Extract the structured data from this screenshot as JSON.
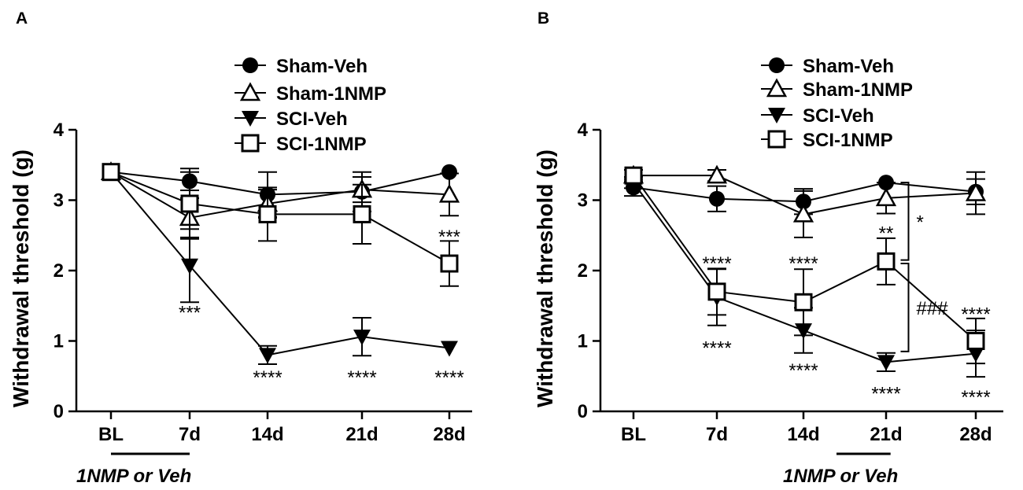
{
  "chart_data": [
    {
      "panel": "A",
      "type": "line",
      "ylabel": "Withdrawal threshold (g)",
      "ylim": [
        0,
        4
      ],
      "yticks": [
        "0",
        "1",
        "2",
        "3",
        "4"
      ],
      "categories": [
        "BL",
        "7d",
        "14d",
        "21d",
        "28d"
      ],
      "treatment_label": "1NMP or Veh",
      "treatment_span": [
        0,
        1
      ],
      "series": [
        {
          "name": "Sham-Veh",
          "marker": "circle",
          "values": [
            3.4,
            3.27,
            3.08,
            3.12,
            3.4
          ],
          "err": [
            0,
            0.13,
            0.32,
            0.28,
            0
          ]
        },
        {
          "name": "Sham-1NMP",
          "marker": "triangle-up",
          "values": [
            3.4,
            2.75,
            2.95,
            3.15,
            3.08
          ],
          "err": [
            0,
            0.28,
            0.2,
            0.18,
            0.3
          ]
        },
        {
          "name": "SCI-Veh",
          "marker": "triangle-down",
          "values": [
            3.4,
            2.07,
            0.8,
            1.06,
            0.9
          ],
          "err": [
            0,
            0.52,
            0.13,
            0.27,
            0
          ]
        },
        {
          "name": "SCI-1NMP",
          "marker": "square",
          "values": [
            3.4,
            2.95,
            2.8,
            2.8,
            2.1
          ],
          "err": [
            0,
            0.5,
            0.38,
            0.42,
            0.32
          ]
        }
      ],
      "annotations": [
        {
          "text": "***",
          "x": 1,
          "y": 1.4
        },
        {
          "text": "****",
          "x": 2,
          "y": 0.48
        },
        {
          "text": "****",
          "x": 3,
          "y": 0.48
        },
        {
          "text": "***",
          "x": 4,
          "y": 2.48
        },
        {
          "text": "****",
          "x": 4,
          "y": 0.48
        }
      ]
    },
    {
      "panel": "B",
      "type": "line",
      "ylabel": "Withdrawal threshold (g)",
      "ylim": [
        0,
        4
      ],
      "yticks": [
        "0",
        "1",
        "2",
        "3",
        "4"
      ],
      "categories": [
        "BL",
        "7d",
        "14d",
        "21d",
        "28d"
      ],
      "treatment_label": "1NMP or Veh",
      "treatment_span": [
        2.4,
        3.05
      ],
      "series": [
        {
          "name": "Sham-Veh",
          "marker": "circle",
          "values": [
            3.18,
            3.02,
            2.98,
            3.25,
            3.12
          ],
          "err": [
            0.12,
            0.18,
            0.18,
            0,
            0.18
          ]
        },
        {
          "name": "Sham-1NMP",
          "marker": "triangle-up",
          "values": [
            3.35,
            3.35,
            2.8,
            3.03,
            3.1
          ],
          "err": [
            0.08,
            0.08,
            0.33,
            0.22,
            0.3
          ]
        },
        {
          "name": "SCI-Veh",
          "marker": "triangle-down",
          "values": [
            3.25,
            1.62,
            1.15,
            0.7,
            0.82
          ],
          "err": [
            0.08,
            0.4,
            0.32,
            0.13,
            0.33
          ]
        },
        {
          "name": "SCI-1NMP",
          "marker": "square",
          "values": [
            3.35,
            1.7,
            1.55,
            2.13,
            1.0
          ],
          "err": [
            0.08,
            0.33,
            0.47,
            0.33,
            0.32
          ]
        }
      ],
      "annotations": [
        {
          "text": "****",
          "x": 1,
          "y": 2.1
        },
        {
          "text": "****",
          "x": 1,
          "y": 0.9
        },
        {
          "text": "****",
          "x": 2,
          "y": 2.1
        },
        {
          "text": "****",
          "x": 2,
          "y": 0.58
        },
        {
          "text": "**",
          "x": 3,
          "y": 2.53
        },
        {
          "text": "****",
          "x": 3,
          "y": 0.25
        },
        {
          "text": "****",
          "x": 4,
          "y": 1.38
        },
        {
          "text": "****",
          "x": 4,
          "y": 0.2
        }
      ],
      "brackets": [
        {
          "label": "*",
          "x": 3.25,
          "y1": 2.15,
          "y2": 3.25
        },
        {
          "label": "###",
          "x": 3.25,
          "y1": 0.85,
          "y2": 2.1
        }
      ]
    }
  ]
}
